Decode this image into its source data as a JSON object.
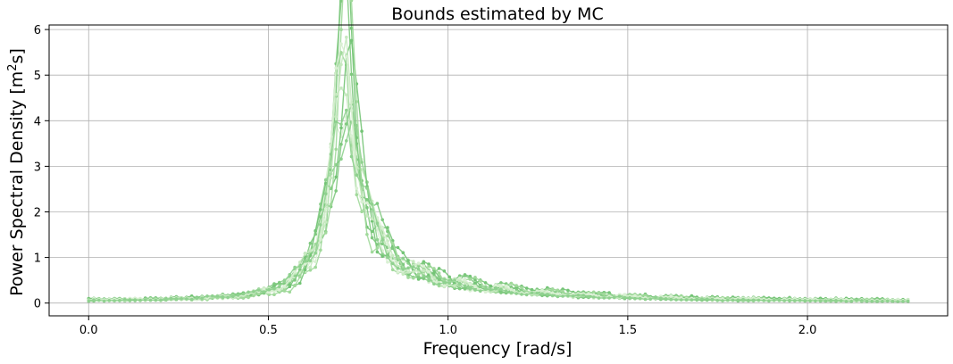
{
  "chart_data": {
    "type": "line",
    "title": "Bounds estimated by MC",
    "xlabel": "Frequency [rad/s]",
    "ylabel_main": "Power Spectral Density [m",
    "ylabel_sup": "2",
    "ylabel_tail": "s]",
    "xlim": [
      -0.11,
      2.39
    ],
    "ylim": [
      -0.28,
      6.1
    ],
    "xticks": [
      0.0,
      0.5,
      1.0,
      1.5,
      2.0
    ],
    "xtick_labels": [
      "0.0",
      "0.5",
      "1.0",
      "1.5",
      "2.0"
    ],
    "yticks": [
      0,
      1,
      2,
      3,
      4,
      5,
      6
    ],
    "ytick_labels": [
      "0",
      "1",
      "2",
      "3",
      "4",
      "5",
      "6"
    ],
    "grid": true,
    "x_range": [
      0.0,
      2.28
    ],
    "n_points": 160,
    "peak": {
      "x": 0.71,
      "y": 5.8
    },
    "series_colors": [
      "#74c476",
      "#7fc97f",
      "#a1d99b",
      "#c7e9c0",
      "#d9f0d3",
      "#8fd18f"
    ],
    "series": [
      {
        "peak_scale": 1.0,
        "bandwidth": 0.04,
        "ripple": 0.3,
        "phase": 0.0,
        "floor": 0.05
      },
      {
        "peak_scale": 0.92,
        "bandwidth": 0.046,
        "ripple": 0.25,
        "phase": 0.7,
        "floor": 0.06
      },
      {
        "peak_scale": 0.85,
        "bandwidth": 0.042,
        "ripple": 0.28,
        "phase": 1.4,
        "floor": 0.04
      },
      {
        "peak_scale": 0.78,
        "bandwidth": 0.05,
        "ripple": 0.22,
        "phase": 2.1,
        "floor": 0.05
      },
      {
        "peak_scale": 0.72,
        "bandwidth": 0.052,
        "ripple": 0.2,
        "phase": 2.8,
        "floor": 0.03
      },
      {
        "peak_scale": 0.66,
        "bandwidth": 0.058,
        "ripple": 0.18,
        "phase": 3.5,
        "floor": 0.04
      },
      {
        "peak_scale": 0.88,
        "bandwidth": 0.044,
        "ripple": 0.32,
        "phase": 4.2,
        "floor": 0.06
      },
      {
        "peak_scale": 0.6,
        "bandwidth": 0.062,
        "ripple": 0.16,
        "phase": 4.9,
        "floor": 0.03
      },
      {
        "peak_scale": 0.95,
        "bandwidth": 0.038,
        "ripple": 0.35,
        "phase": 5.6,
        "floor": 0.05
      },
      {
        "peak_scale": 0.7,
        "bandwidth": 0.055,
        "ripple": 0.24,
        "phase": 0.35,
        "floor": 0.04
      },
      {
        "peak_scale": 0.8,
        "bandwidth": 0.048,
        "ripple": 0.27,
        "phase": 1.05,
        "floor": 0.05
      },
      {
        "peak_scale": 0.64,
        "bandwidth": 0.06,
        "ripple": 0.19,
        "phase": 1.75,
        "floor": 0.03
      }
    ]
  }
}
